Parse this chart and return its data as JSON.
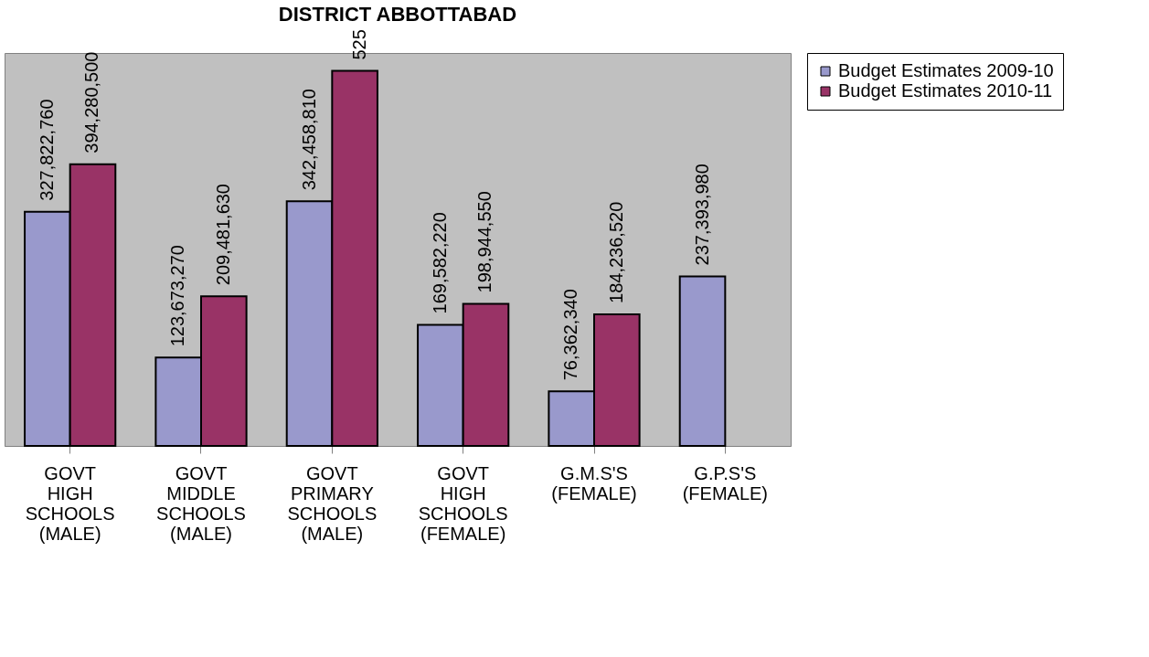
{
  "chart_data": {
    "type": "bar",
    "title": "DISTRICT ABBOTTABAD",
    "categories": [
      "GOVT HIGH SCHOOLS (MALE)",
      "GOVT MIDDLE SCHOOLS (MALE)",
      "GOVT PRIMARY SCHOOLS (MALE)",
      "GOVT HIGH SCHOOLS (FEMALE)",
      "G.M.S'S (FEMALE)",
      "G.P.S'S (FEMALE)"
    ],
    "series": [
      {
        "name": "Budget Estimates 2009-10",
        "color": "#9999cc",
        "values": [
          327822760,
          123673270,
          342458810,
          169582220,
          76362340,
          237393980
        ],
        "value_labels": [
          "327,822,760",
          "123,673,270",
          "342,458,810",
          "169,582,220",
          "76,362,340",
          "237,393,980"
        ]
      },
      {
        "name": "Budget Estimates 2010-11",
        "color": "#993366",
        "values": [
          394280500,
          209481630,
          525000000,
          198944550,
          184236520,
          null
        ],
        "value_labels": [
          "394,280,500",
          "209,481,630",
          null,
          "198,944,550",
          "184,236,520",
          null
        ]
      }
    ],
    "annotations": [
      {
        "text": "525",
        "x": "GOVT PRIMARY SCHOOLS (MALE)",
        "y": 525000000
      }
    ],
    "legend": "right",
    "grid": false,
    "tick_labels": "x"
  }
}
